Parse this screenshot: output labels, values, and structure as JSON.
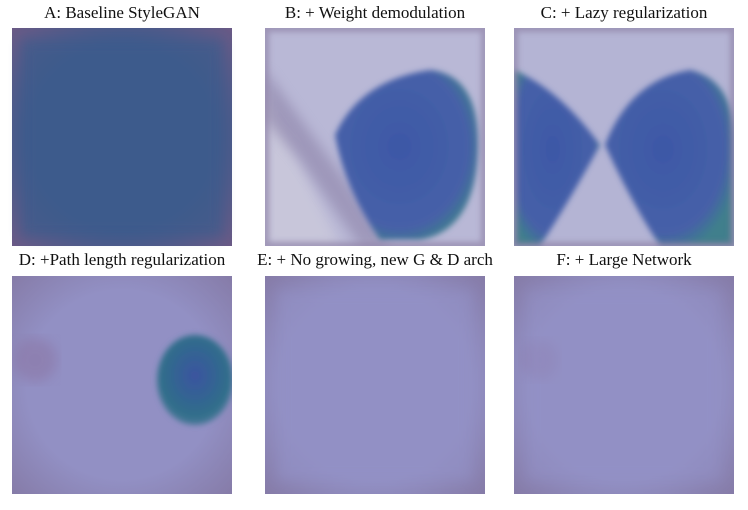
{
  "panels": [
    {
      "caption": "A: Baseline StyleGAN"
    },
    {
      "caption": "B: + Weight demodulation"
    },
    {
      "caption": "C: + Lazy regularization"
    },
    {
      "caption": "D: +Path length regularization"
    },
    {
      "caption": "E: + No growing, new G & D arch"
    },
    {
      "caption": "F: + Large Network"
    }
  ]
}
